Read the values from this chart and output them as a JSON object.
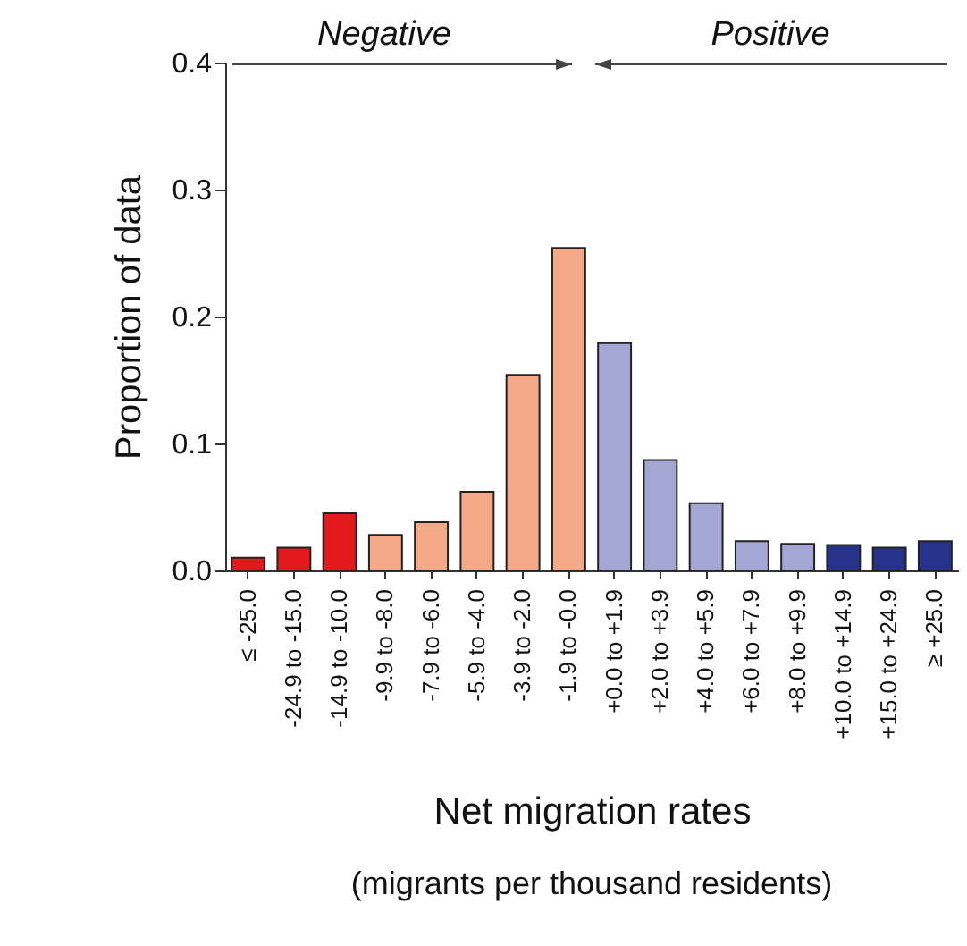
{
  "chart_data": {
    "type": "bar",
    "ylabel": "Proportion of data",
    "xlabel": "Net migration rates",
    "annotations": [
      "Negative",
      "Positive",
      "(migrants per thousand residents)"
    ],
    "categories": [
      "≤ -25.0",
      "-24.9 to -15.0",
      "-14.9 to -10.0",
      "-9.9 to -8.0",
      "-7.9 to -6.0",
      "-5.9 to -4.0",
      "-3.9 to -2.0",
      "-1.9 to -0.0",
      "+0.0 to +1.9",
      "+2.0 to +3.9",
      "+4.0 to +5.9",
      "+6.0 to +7.9",
      "+8.0 to +9.9",
      "+10.0 to +14.9",
      "+15.0 to +24.9",
      "≥ +25.0"
    ],
    "values": [
      0.01,
      0.018,
      0.045,
      0.028,
      0.038,
      0.062,
      0.154,
      0.254,
      0.179,
      0.087,
      0.053,
      0.023,
      0.021,
      0.02,
      0.018,
      0.023
    ],
    "colors": [
      "#e31a1c",
      "#e31a1c",
      "#e31a1c",
      "#f4a988",
      "#f4a988",
      "#f4a988",
      "#f4a988",
      "#f4a988",
      "#a4a6d3",
      "#a4a6d3",
      "#a4a6d3",
      "#a4a6d3",
      "#a4a6d3",
      "#27338a",
      "#27338a",
      "#27338a"
    ],
    "ylim": [
      0,
      0.4
    ],
    "yticks": [
      {
        "value": 0,
        "label": "0.0"
      },
      0.1,
      0.2,
      0.3,
      0.4
    ]
  }
}
